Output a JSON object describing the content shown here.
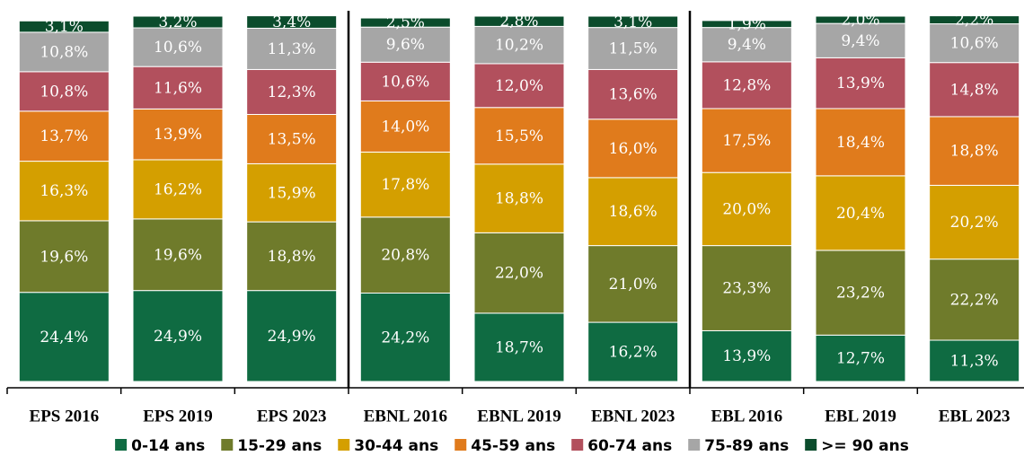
{
  "chart_data": {
    "type": "stacked-bar",
    "categories": [
      "EPS 2016",
      "EPS 2019",
      "EPS 2023",
      "EBNL 2016",
      "EBNL 2019",
      "EBNL 2023",
      "EBL 2016",
      "EBL 2019",
      "EBL 2023"
    ],
    "ylim": [
      0,
      100
    ],
    "legend": "bottom",
    "series": [
      {
        "name": "0-14 ans",
        "color": "#0f6b42",
        "values": [
          24.4,
          24.9,
          24.9,
          24.2,
          18.7,
          16.2,
          13.9,
          12.7,
          11.3
        ],
        "value_labels": [
          "24,4%",
          "24,9%",
          "24,9%",
          "24,2%",
          "18,7%",
          "16,2%",
          "13,9%",
          "12,7%",
          "11,3%"
        ]
      },
      {
        "name": "15-29 ans",
        "color": "#6f7b2b",
        "values": [
          19.6,
          19.6,
          18.8,
          20.8,
          22.0,
          21.0,
          23.3,
          23.2,
          22.2
        ],
        "value_labels": [
          "19,6%",
          "19,6%",
          "18,8%",
          "20,8%",
          "22,0%",
          "21,0%",
          "23,3%",
          "23,2%",
          "22,2%"
        ]
      },
      {
        "name": "30-44 ans",
        "color": "#d49f00",
        "values": [
          16.3,
          16.2,
          15.9,
          17.8,
          18.8,
          18.6,
          20.0,
          20.4,
          20.2
        ],
        "value_labels": [
          "16,3%",
          "16,2%",
          "15,9%",
          "17,8%",
          "18,8%",
          "18,6%",
          "20,0%",
          "20,4%",
          "20,2%"
        ]
      },
      {
        "name": "45-59 ans",
        "color": "#e07b1c",
        "values": [
          13.7,
          13.9,
          13.5,
          14.0,
          15.5,
          16.0,
          17.5,
          18.4,
          18.8
        ],
        "value_labels": [
          "13,7%",
          "13,9%",
          "13,5%",
          "14,0%",
          "15,5%",
          "16,0%",
          "17,5%",
          "18,4%",
          "18,8%"
        ]
      },
      {
        "name": "60-74 ans",
        "color": "#b2505d",
        "values": [
          10.8,
          11.6,
          12.3,
          10.6,
          12.0,
          13.6,
          12.8,
          13.9,
          14.8
        ],
        "value_labels": [
          "10,8%",
          "11,6%",
          "12,3%",
          "10,6%",
          "12,0%",
          "13,6%",
          "12,8%",
          "13,9%",
          "14,8%"
        ]
      },
      {
        "name": "75-89 ans",
        "color": "#a6a6a6",
        "values": [
          10.8,
          10.6,
          11.3,
          9.6,
          10.2,
          11.5,
          9.4,
          9.4,
          10.6
        ],
        "value_labels": [
          "10,8%",
          "10,6%",
          "11,3%",
          "9,6%",
          "10,2%",
          "11,5%",
          "9,4%",
          "9,4%",
          "10,6%"
        ]
      },
      {
        "name": ">= 90 ans",
        "color": "#0b4c2c",
        "values": [
          3.1,
          3.2,
          3.4,
          2.5,
          2.8,
          3.1,
          1.9,
          2.0,
          2.2
        ],
        "value_labels": [
          "3,1%",
          "3,2%",
          "3,4%",
          "2,5%",
          "2,8%",
          "3,1%",
          "1,9%",
          "2,0%",
          "2,2%"
        ]
      }
    ]
  }
}
